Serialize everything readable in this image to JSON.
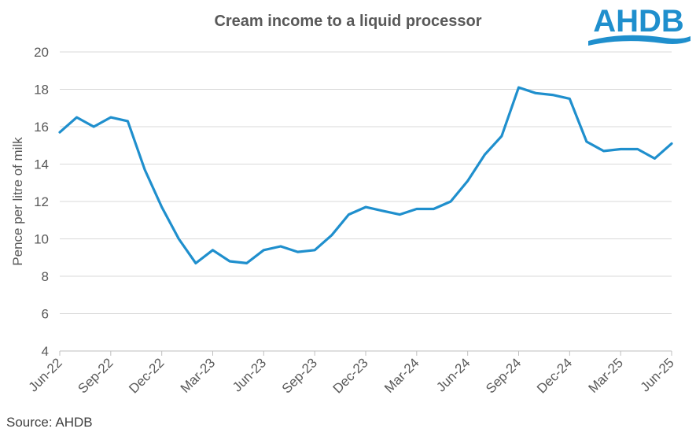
{
  "logo_text": "AHDB",
  "source": "Source: AHDB",
  "colors": {
    "line": "#1f8fcd",
    "grid": "#d9d9d9",
    "text": "#595959",
    "logo": "#1f8fcd"
  },
  "chart_data": {
    "type": "line",
    "title": "Cream income to a liquid processor",
    "xlabel": "",
    "ylabel": "Pence per litre of milk",
    "ylim": [
      4,
      20
    ],
    "yticks": [
      4,
      6,
      8,
      10,
      12,
      14,
      16,
      18,
      20
    ],
    "grid": true,
    "legend": "none",
    "x": [
      "Jun-22",
      "Jul-22",
      "Aug-22",
      "Sep-22",
      "Oct-22",
      "Nov-22",
      "Dec-22",
      "Jan-23",
      "Feb-23",
      "Mar-23",
      "Apr-23",
      "May-23",
      "Jun-23",
      "Jul-23",
      "Aug-23",
      "Sep-23",
      "Oct-23",
      "Nov-23",
      "Dec-23",
      "Jan-24",
      "Feb-24",
      "Mar-24",
      "Apr-24",
      "May-24",
      "Jun-24",
      "Jul-24",
      "Aug-24",
      "Sep-24",
      "Oct-24",
      "Nov-24",
      "Dec-24",
      "Jan-25",
      "Feb-25",
      "Mar-25",
      "Apr-25",
      "May-25",
      "Jun-25"
    ],
    "xtick_labels": [
      "Jun-22",
      "Sep-22",
      "Dec-22",
      "Mar-23",
      "Jun-23",
      "Sep-23",
      "Dec-23",
      "Mar-24",
      "Jun-24",
      "Sep-24",
      "Dec-24",
      "Mar-25",
      "Jun-25"
    ],
    "series": [
      {
        "values": [
          15.7,
          16.5,
          16.0,
          16.5,
          16.3,
          13.7,
          11.7,
          10.0,
          8.7,
          9.4,
          8.8,
          8.7,
          9.4,
          9.6,
          9.3,
          9.4,
          10.2,
          11.3,
          11.7,
          11.5,
          11.3,
          11.6,
          11.6,
          12.0,
          13.1,
          14.5,
          15.5,
          18.1,
          17.8,
          17.7,
          17.5,
          15.2,
          14.7,
          14.8,
          14.8,
          14.3,
          15.1
        ]
      }
    ]
  }
}
